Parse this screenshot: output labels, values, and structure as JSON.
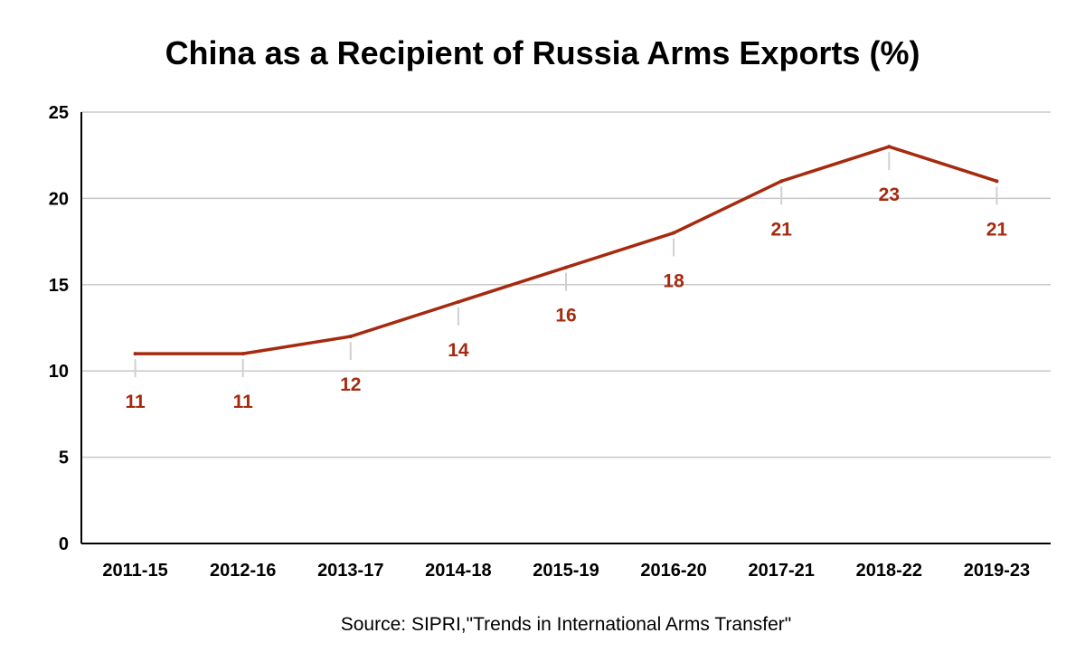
{
  "chart_data": {
    "type": "line",
    "title": "China as a Recipient of Russia Arms Exports (%)",
    "source": "Source: SIPRI,\"Trends in International Arms Transfer\"",
    "categories": [
      "2011-15",
      "2012-16",
      "2013-17",
      "2014-18",
      "2015-19",
      "2016-20",
      "2017-21",
      "2018-22",
      "2019-23"
    ],
    "series": [
      {
        "values": [
          11,
          11,
          12,
          14,
          16,
          18,
          21,
          23,
          21
        ]
      }
    ],
    "data_labels": [
      "11",
      "11",
      "12",
      "14",
      "16",
      "18",
      "21",
      "23",
      "21"
    ],
    "y_ticks": [
      "0",
      "5",
      "10",
      "15",
      "20",
      "25"
    ],
    "ylim": [
      0,
      25
    ],
    "grid": true,
    "legend": "none",
    "colors": {
      "line": "#a52a0f",
      "label": "#a52a0f",
      "grid": "#c8c8c8",
      "axis": "#000000",
      "leader": "#d0d0d0"
    }
  }
}
